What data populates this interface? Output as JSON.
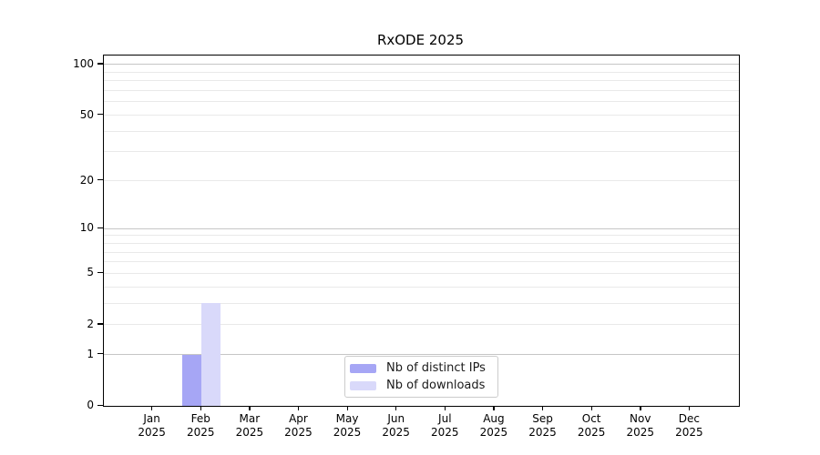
{
  "title": "RxODE 2025",
  "chart_data": {
    "type": "bar",
    "title": "RxODE 2025",
    "y_scale": "log10(1+x)",
    "categories": [
      "Jan 2025",
      "Feb 2025",
      "Mar 2025",
      "Apr 2025",
      "May 2025",
      "Jun 2025",
      "Jul 2025",
      "Aug 2025",
      "Sep 2025",
      "Oct 2025",
      "Nov 2025",
      "Dec 2025"
    ],
    "series": [
      {
        "name": "Nb of distinct IPs",
        "color": "#a6a6f5",
        "values": [
          0,
          1,
          0,
          0,
          0,
          0,
          0,
          0,
          0,
          0,
          0,
          0
        ]
      },
      {
        "name": "Nb of downloads",
        "color": "#d9d9fa",
        "values": [
          0,
          3,
          0,
          0,
          0,
          0,
          0,
          0,
          0,
          0,
          0,
          0
        ]
      }
    ],
    "y_ticks": [
      0,
      1,
      2,
      5,
      10,
      20,
      50,
      100
    ],
    "gridlines": {
      "major": [
        1,
        10,
        100
      ],
      "minor": [
        2,
        3,
        4,
        5,
        6,
        7,
        8,
        9,
        20,
        30,
        40,
        50,
        60,
        70,
        80,
        90
      ],
      "major_color": "#c6c6c6",
      "minor_color": "#e9e9e9"
    },
    "ylim": [
      0,
      113
    ],
    "xlabel": "",
    "ylabel": "",
    "grid": "horizontal-only",
    "legend_position": "bottom-center-inside"
  }
}
